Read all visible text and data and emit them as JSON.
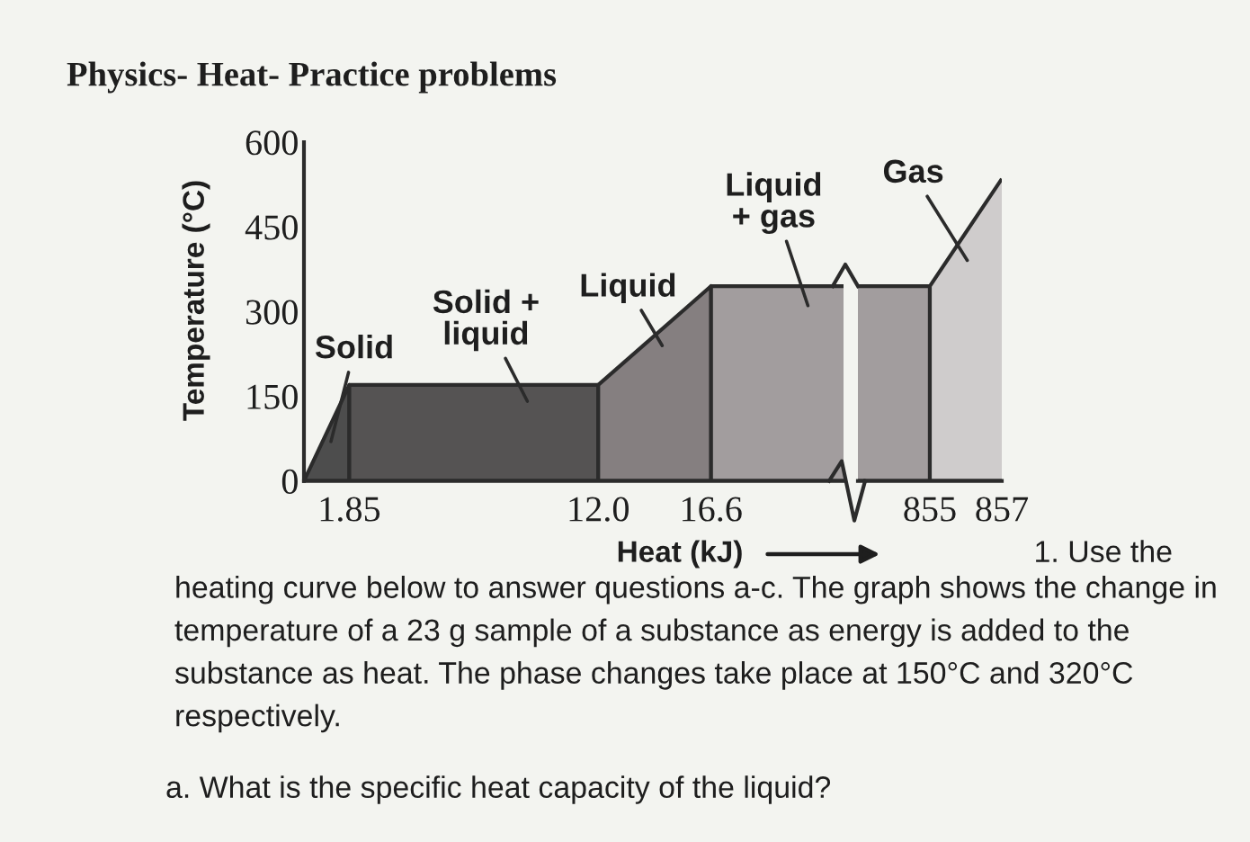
{
  "chart_data": [
    {
      "type": "area",
      "title": "Physics- Heat- Practice problems",
      "xlabel": "Heat (kJ)",
      "ylabel": "Temperature (°C)",
      "xlim": [
        0,
        22
      ],
      "xticks": [
        1.85,
        {
          "value": 12,
          "label": "12.0"
        },
        16.6
      ],
      "ylim": [
        0,
        600
      ],
      "yticks": [
        0,
        150,
        300,
        450,
        600
      ],
      "series": [
        {
          "name": "Solid",
          "color": "#4d4d4d",
          "x": [
            0,
            1.85
          ],
          "values": [
            0,
            170
          ]
        },
        {
          "name": "Solid + liquid",
          "color": "#555353",
          "x": [
            1.85,
            12
          ],
          "values": [
            170,
            170
          ]
        },
        {
          "name": "Liquid",
          "color": "#857f80",
          "x": [
            12,
            16.6
          ],
          "values": [
            170,
            345
          ]
        },
        {
          "name": "Liquid + gas",
          "color": "#a29d9e",
          "x": [
            16.6,
            22
          ],
          "values": [
            345,
            345
          ]
        }
      ],
      "annotations": [
        "1. Use the",
        "heating curve below to answer questions a-c. The graph shows the change in\ntemperature of a 23 g sample of a substance as energy is added to the\nsubstance as heat. The phase changes take place at 150°C and 320°C\nrespectively.",
        "a. What is the specific heat capacity of the liquid?"
      ]
    },
    {
      "type": "area",
      "xlim": [
        853,
        857
      ],
      "xticks": [
        855,
        857
      ],
      "ylim": [
        0,
        600
      ],
      "tick_labels": "x",
      "series": [
        {
          "color": "#a29d9e",
          "x": [
            853,
            855
          ],
          "values": [
            345,
            345
          ]
        },
        {
          "name": "Gas",
          "color": "#cfcccc",
          "x": [
            855,
            857
          ],
          "values": [
            345,
            535
          ]
        }
      ]
    }
  ]
}
